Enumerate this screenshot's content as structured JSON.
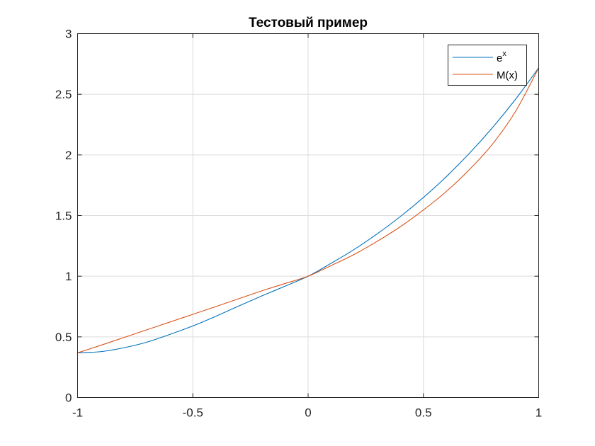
{
  "chart_data": {
    "type": "line",
    "title": "Тестовый пример",
    "xlabel": "",
    "ylabel": "",
    "xlim": [
      -1,
      1
    ],
    "ylim": [
      0,
      3
    ],
    "xticks": [
      -1,
      -0.5,
      0,
      0.5,
      1
    ],
    "xtick_labels": [
      "-1",
      "-0.5",
      "0",
      "0.5",
      "1"
    ],
    "yticks": [
      0,
      0.5,
      1,
      1.5,
      2,
      2.5,
      3
    ],
    "ytick_labels": [
      "0",
      "0.5",
      "1",
      "1.5",
      "2",
      "2.5",
      "3"
    ],
    "grid": true,
    "legend": "top-right",
    "x": [
      -1,
      -0.9,
      -0.8,
      -0.7,
      -0.6,
      -0.5,
      -0.4,
      -0.3,
      -0.2,
      -0.1,
      0,
      0.1,
      0.2,
      0.3,
      0.4,
      0.5,
      0.6,
      0.7,
      0.8,
      0.9,
      1
    ],
    "series": [
      {
        "name_base": "e",
        "name_sup": "x",
        "color": "#0072BD",
        "values": [
          0.368,
          0.378,
          0.41,
          0.456,
          0.52,
          0.59,
          0.67,
          0.755,
          0.838,
          0.918,
          1.0,
          1.107,
          1.221,
          1.35,
          1.492,
          1.649,
          1.822,
          2.014,
          2.226,
          2.46,
          2.718
        ]
      },
      {
        "name": "M(x)",
        "color": "#D95319",
        "values": [
          0.368,
          0.43,
          0.494,
          0.558,
          0.622,
          0.686,
          0.75,
          0.815,
          0.88,
          0.94,
          1.0,
          1.088,
          1.18,
          1.288,
          1.408,
          1.546,
          1.7,
          1.88,
          2.09,
          2.36,
          2.718
        ]
      }
    ]
  }
}
